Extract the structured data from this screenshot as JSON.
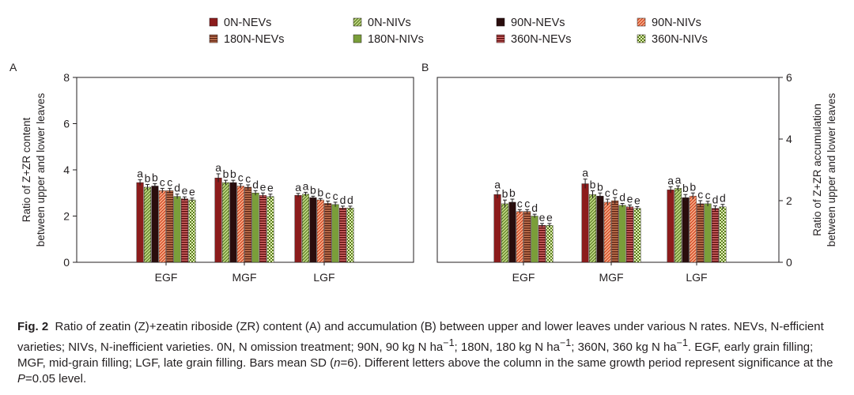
{
  "legend": {
    "treatments": [
      {
        "label": "0N-NEVs",
        "color": "#8c1c1c",
        "pattern": "solid"
      },
      {
        "label": "0N-NIVs",
        "color": "#9fbf4f",
        "pattern": "diag"
      },
      {
        "label": "90N-NEVs",
        "color": "#2a0d0d",
        "pattern": "solid"
      },
      {
        "label": "90N-NIVs",
        "color": "#e8643a",
        "pattern": "diag"
      },
      {
        "label": "180N-NEVs",
        "color": "#9a4830",
        "pattern": "hstripe"
      },
      {
        "label": "180N-NIVs",
        "color": "#7a9e3a",
        "pattern": "solid"
      },
      {
        "label": "360N-NEVs",
        "color": "#7a1818",
        "pattern": "hstripe"
      },
      {
        "label": "360N-NIVs",
        "color": "#8fb640",
        "pattern": "check"
      }
    ]
  },
  "chart_data": [
    {
      "panel_label": "A",
      "type": "bar",
      "ylabel_line1": "Ratio of Z+ZR content",
      "ylabel_line2": "between upper and lower leaves",
      "axis_side": "left",
      "ylim": [
        0,
        8
      ],
      "yticks": [
        "0",
        "2",
        "4",
        "6",
        "8"
      ],
      "categories": [
        "EGF",
        "MGF",
        "LGF"
      ],
      "series": [
        {
          "name": "0N-NEVs",
          "values": [
            3.45,
            3.65,
            2.9
          ],
          "sd": [
            0.12,
            0.18,
            0.08
          ],
          "letters": [
            "a",
            "a",
            "a"
          ]
        },
        {
          "name": "0N-NIVs",
          "values": [
            3.25,
            3.45,
            2.95
          ],
          "sd": [
            0.12,
            0.1,
            0.08
          ],
          "letters": [
            "b",
            "b",
            "a"
          ]
        },
        {
          "name": "90N-NEVs",
          "values": [
            3.3,
            3.45,
            2.8
          ],
          "sd": [
            0.1,
            0.1,
            0.06
          ],
          "letters": [
            "b",
            "b",
            "b"
          ]
        },
        {
          "name": "90N-NIVs",
          "values": [
            3.1,
            3.3,
            2.7
          ],
          "sd": [
            0.1,
            0.1,
            0.06
          ],
          "letters": [
            "c",
            "c",
            "b"
          ]
        },
        {
          "name": "180N-NEVs",
          "values": [
            3.1,
            3.25,
            2.55
          ],
          "sd": [
            0.1,
            0.1,
            0.1
          ],
          "letters": [
            "c",
            "c",
            "c"
          ]
        },
        {
          "name": "180N-NIVs",
          "values": [
            2.85,
            3.0,
            2.5
          ],
          "sd": [
            0.1,
            0.1,
            0.1
          ],
          "letters": [
            "d",
            "d",
            "c"
          ]
        },
        {
          "name": "360N-NEVs",
          "values": [
            2.75,
            2.9,
            2.35
          ],
          "sd": [
            0.08,
            0.1,
            0.08
          ],
          "letters": [
            "e",
            "e",
            "d"
          ]
        },
        {
          "name": "360N-NIVs",
          "values": [
            2.7,
            2.85,
            2.35
          ],
          "sd": [
            0.08,
            0.1,
            0.08
          ],
          "letters": [
            "e",
            "e",
            "d"
          ]
        }
      ]
    },
    {
      "panel_label": "B",
      "type": "bar",
      "ylabel_line1": "Ratio of Z+ZR accumulation",
      "ylabel_line2": "between upper and lower leaves",
      "axis_side": "right",
      "ylim": [
        0,
        6
      ],
      "yticks": [
        "0",
        "2",
        "4",
        "6"
      ],
      "categories": [
        "EGF",
        "MGF",
        "LGF"
      ],
      "series": [
        {
          "name": "0N-NEVs",
          "values": [
            2.2,
            2.55,
            2.35
          ],
          "sd": [
            0.12,
            0.15,
            0.1
          ],
          "letters": [
            "a",
            "a",
            "a"
          ]
        },
        {
          "name": "0N-NIVs",
          "values": [
            1.9,
            2.2,
            2.4
          ],
          "sd": [
            0.12,
            0.12,
            0.08
          ],
          "letters": [
            "b",
            "b",
            "a"
          ]
        },
        {
          "name": "90N-NEVs",
          "values": [
            1.95,
            2.15,
            2.1
          ],
          "sd": [
            0.1,
            0.1,
            0.1
          ],
          "letters": [
            "b",
            "b",
            "b"
          ]
        },
        {
          "name": "90N-NIVs",
          "values": [
            1.65,
            1.95,
            2.15
          ],
          "sd": [
            0.06,
            0.1,
            0.1
          ],
          "letters": [
            "c",
            "c",
            "b"
          ]
        },
        {
          "name": "180N-NEVs",
          "values": [
            1.65,
            2.0,
            1.9
          ],
          "sd": [
            0.06,
            0.1,
            0.1
          ],
          "letters": [
            "c",
            "c",
            "c"
          ]
        },
        {
          "name": "180N-NIVs",
          "values": [
            1.5,
            1.85,
            1.9
          ],
          "sd": [
            0.06,
            0.06,
            0.08
          ],
          "letters": [
            "d",
            "d",
            "c"
          ]
        },
        {
          "name": "360N-NEVs",
          "values": [
            1.2,
            1.8,
            1.75
          ],
          "sd": [
            0.06,
            0.06,
            0.08
          ],
          "letters": [
            "e",
            "e",
            "d"
          ]
        },
        {
          "name": "360N-NIVs",
          "values": [
            1.2,
            1.75,
            1.8
          ],
          "sd": [
            0.06,
            0.06,
            0.08
          ],
          "letters": [
            "e",
            "e",
            "d"
          ]
        }
      ]
    }
  ],
  "caption": {
    "label": "Fig. 2",
    "p1": "Ratio of zeatin (Z)+zeatin riboside (ZR) content (A) and accumulation (B) between upper and lower leaves under various N rates.  NEVs, N-efficient varieties; NIVs, N-inefficient varieties.  0N, N omission treatment; 90N, 90 kg N ha",
    "sup1": "−1",
    "p2": "; 180N, 180 kg N ha",
    "sup2": "−1",
    "p3": "; 360N, 360 kg N ha",
    "sup3": "−1",
    "p4": ".  EGF, early grain filling; MGF, mid-grain filling; LGF, late grain filling.  Bars mean SD (",
    "n_italic": "n",
    "p5": "=6).  Different letters above the column in the same growth period represent significance at the ",
    "p_italic": "P",
    "p6": "=0.05 level."
  }
}
